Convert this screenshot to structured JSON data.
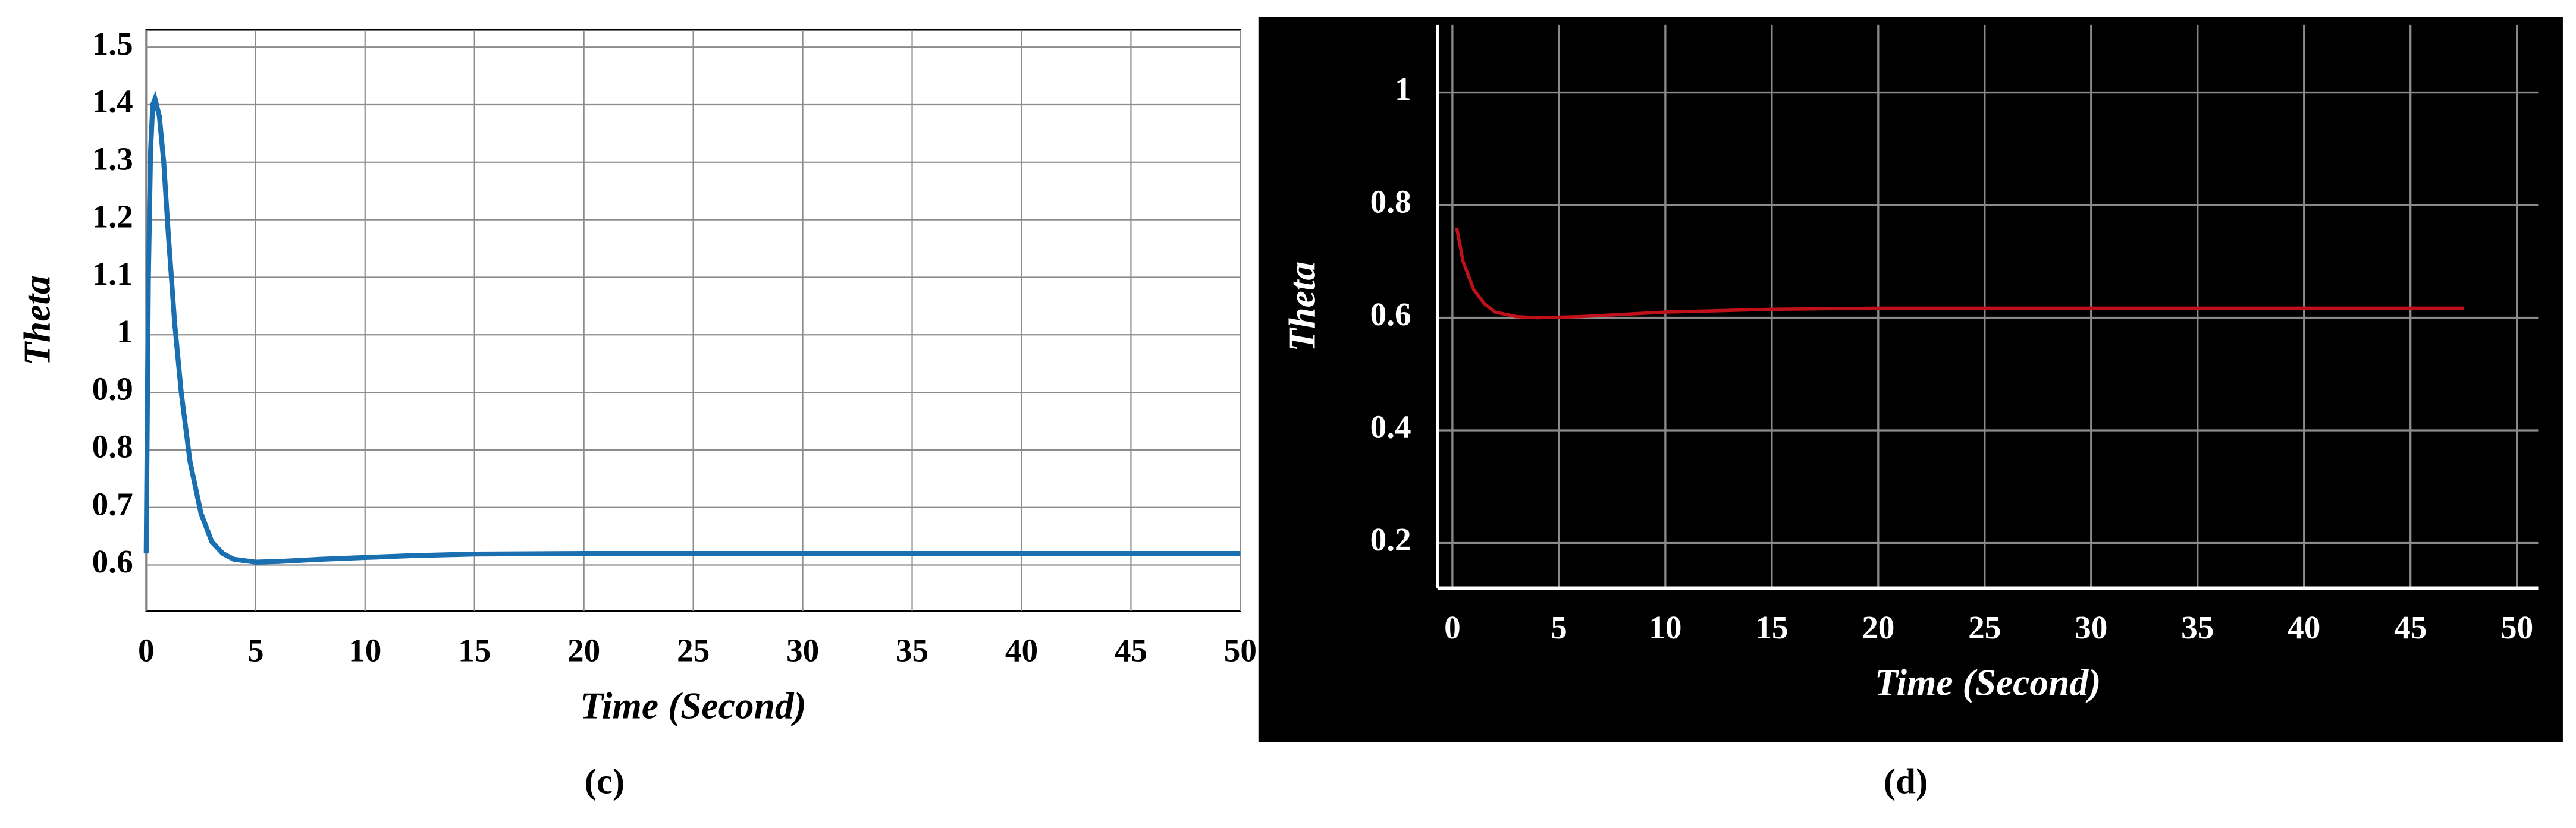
{
  "chart_data": [
    {
      "type": "line",
      "y_label": "Theta",
      "x_label": "Time (Second)",
      "caption": "(c)",
      "x": [
        0,
        0.1,
        0.2,
        0.3,
        0.4,
        0.6,
        0.8,
        1,
        1.3,
        1.6,
        2,
        2.5,
        3,
        3.5,
        4,
        5,
        6,
        8,
        10,
        12,
        15,
        20,
        30,
        40,
        50
      ],
      "values": [
        0.62,
        1.1,
        1.32,
        1.4,
        1.41,
        1.38,
        1.3,
        1.18,
        1.02,
        0.9,
        0.78,
        0.69,
        0.64,
        0.62,
        0.61,
        0.605,
        0.606,
        0.61,
        0.613,
        0.616,
        0.619,
        0.62,
        0.62,
        0.62,
        0.62
      ],
      "color": "#1a6fb0",
      "xlim": [
        0,
        50
      ],
      "ylim": [
        0.52,
        1.53
      ],
      "xticks": [
        0,
        5,
        10,
        15,
        20,
        25,
        30,
        35,
        40,
        45,
        50
      ],
      "yticks": [
        0.6,
        0.7,
        0.8,
        0.9,
        1,
        1.1,
        1.2,
        1.3,
        1.4,
        1.5
      ],
      "grid": true
    },
    {
      "type": "line",
      "y_label": "Theta",
      "x_label": "Time (Second)",
      "caption": "(d)",
      "x": [
        0.2,
        0.5,
        1,
        1.5,
        2,
        3,
        4,
        6,
        10,
        15,
        20,
        30,
        40,
        47.5
      ],
      "values": [
        0.76,
        0.7,
        0.65,
        0.625,
        0.61,
        0.602,
        0.6,
        0.602,
        0.61,
        0.615,
        0.617,
        0.617,
        0.617,
        0.617
      ],
      "color": "#c0101a",
      "xlim": [
        -0.7,
        51
      ],
      "ylim": [
        0.12,
        1.12
      ],
      "xticks": [
        0,
        5,
        10,
        15,
        20,
        25,
        30,
        35,
        40,
        45,
        50
      ],
      "yticks": [
        0.2,
        0.4,
        0.6,
        0.8,
        1
      ],
      "grid": true
    }
  ]
}
